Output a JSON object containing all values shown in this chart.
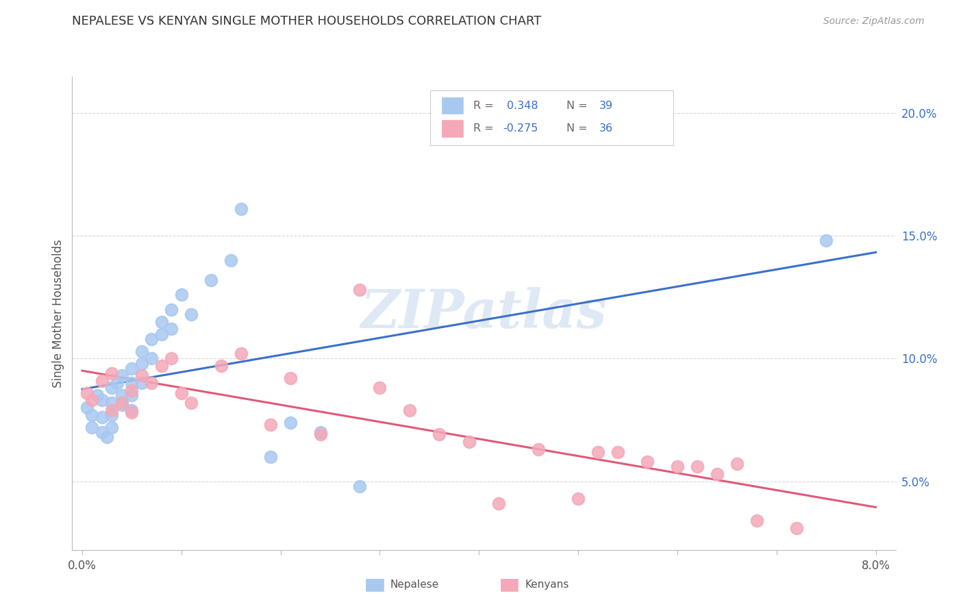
{
  "title": "NEPALESE VS KENYAN SINGLE MOTHER HOUSEHOLDS CORRELATION CHART",
  "source": "Source: ZipAtlas.com",
  "ylabel": "Single Mother Households",
  "x_ticks": [
    0.0,
    0.01,
    0.02,
    0.03,
    0.04,
    0.05,
    0.06,
    0.07,
    0.08
  ],
  "x_ticklabels": [
    "0.0%",
    "",
    "",
    "",
    "",
    "",
    "",
    "",
    "8.0%"
  ],
  "y_ticks": [
    0.05,
    0.1,
    0.15,
    0.2
  ],
  "y_ticklabels": [
    "5.0%",
    "10.0%",
    "15.0%",
    "20.0%"
  ],
  "xlim": [
    -0.001,
    0.082
  ],
  "ylim": [
    0.022,
    0.215
  ],
  "nepalese_color": "#A8C8F0",
  "kenyan_color": "#F4A8B8",
  "nepalese_line_color": "#3A6FCC",
  "kenyan_line_color": "#E05878",
  "nepalese_x": [
    0.0005,
    0.001,
    0.001,
    0.0015,
    0.002,
    0.002,
    0.002,
    0.0025,
    0.003,
    0.003,
    0.003,
    0.003,
    0.0035,
    0.004,
    0.004,
    0.004,
    0.005,
    0.005,
    0.005,
    0.005,
    0.006,
    0.006,
    0.006,
    0.007,
    0.007,
    0.008,
    0.008,
    0.009,
    0.009,
    0.01,
    0.011,
    0.013,
    0.015,
    0.016,
    0.019,
    0.021,
    0.024,
    0.028,
    0.075
  ],
  "nepalese_y": [
    0.08,
    0.077,
    0.072,
    0.085,
    0.083,
    0.076,
    0.07,
    0.068,
    0.088,
    0.082,
    0.077,
    0.072,
    0.09,
    0.093,
    0.085,
    0.081,
    0.096,
    0.09,
    0.085,
    0.079,
    0.103,
    0.098,
    0.09,
    0.108,
    0.1,
    0.115,
    0.11,
    0.12,
    0.112,
    0.126,
    0.118,
    0.132,
    0.14,
    0.161,
    0.06,
    0.074,
    0.07,
    0.048,
    0.148
  ],
  "kenyan_x": [
    0.0005,
    0.001,
    0.002,
    0.003,
    0.003,
    0.004,
    0.005,
    0.005,
    0.006,
    0.007,
    0.008,
    0.009,
    0.01,
    0.011,
    0.014,
    0.016,
    0.019,
    0.021,
    0.024,
    0.028,
    0.03,
    0.033,
    0.036,
    0.039,
    0.042,
    0.046,
    0.05,
    0.052,
    0.054,
    0.057,
    0.06,
    0.062,
    0.064,
    0.066,
    0.068,
    0.072
  ],
  "kenyan_y": [
    0.086,
    0.083,
    0.091,
    0.079,
    0.094,
    0.082,
    0.087,
    0.078,
    0.093,
    0.09,
    0.097,
    0.1,
    0.086,
    0.082,
    0.097,
    0.102,
    0.073,
    0.092,
    0.069,
    0.128,
    0.088,
    0.079,
    0.069,
    0.066,
    0.041,
    0.063,
    0.043,
    0.062,
    0.062,
    0.058,
    0.056,
    0.056,
    0.053,
    0.057,
    0.034,
    0.031
  ],
  "background_color": "#FFFFFF",
  "grid_color": "#D8D8D8",
  "watermark": "ZIPatlas"
}
